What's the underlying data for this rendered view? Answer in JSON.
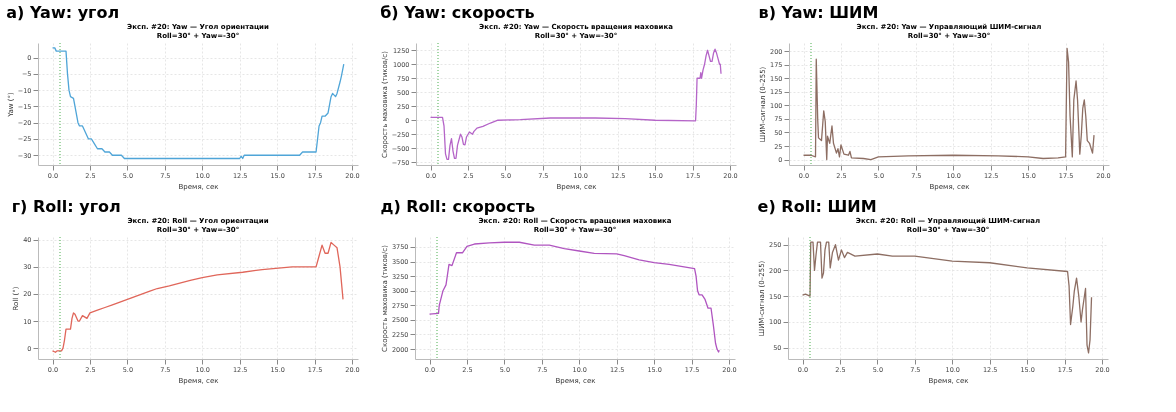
{
  "chart_data": [
    {
      "type": "line",
      "title": "а) Yaw: угол",
      "subtitle": "Эксп. #20: Yaw — Угол ориентации\nRoll=30° + Yaw=-30°",
      "xlabel": "Время, сек",
      "ylabel": "Yaw (°)",
      "grid": true,
      "xlim": [
        -0.97,
        20.4
      ],
      "xticks": [
        {
          "value": 0,
          "label": "0.0"
        },
        {
          "value": 2.5,
          "label": "2.5"
        },
        {
          "value": 5,
          "label": "5.0"
        },
        {
          "value": 7.5,
          "label": "7.5"
        },
        {
          "value": 10,
          "label": "10.0"
        },
        {
          "value": 12.5,
          "label": "12.5"
        },
        {
          "value": 15,
          "label": "15.0"
        },
        {
          "value": 17.5,
          "label": "17.5"
        },
        {
          "value": 20,
          "label": "20.0"
        }
      ],
      "ylim": [
        -33,
        4.5
      ],
      "yticks": [
        -30,
        -25,
        -20,
        -15,
        -10,
        -5,
        0
      ],
      "ref_lines": [
        {
          "axis": "x",
          "value": 0.5,
          "color": "#4caf50",
          "line_style": "dotted"
        }
      ],
      "series": [
        {
          "color": "#4fa5d8",
          "x": [
            0,
            0.15,
            0.25,
            0.9,
            1.0,
            1.1,
            1.2,
            1.4,
            1.5,
            1.7,
            1.8,
            2.0,
            2.2,
            2.4,
            2.6,
            2.8,
            3.0,
            3.3,
            3.5,
            3.8,
            4.0,
            4.6,
            4.8,
            12.5,
            12.6,
            12.7,
            12.8,
            16.5,
            16.7,
            17.6,
            17.8,
            17.9,
            18.0,
            18.2,
            18.4,
            18.6,
            18.7,
            18.9,
            19.0,
            19.2,
            19.3,
            19.45
          ],
          "values": [
            3,
            3,
            2,
            2,
            -5,
            -10,
            -12,
            -12.5,
            -15,
            -20,
            -21,
            -21,
            -23,
            -25,
            -25,
            -26.5,
            -28,
            -28,
            -29,
            -29,
            -30,
            -30,
            -31,
            -31,
            -30.3,
            -31,
            -30,
            -30,
            -29,
            -29,
            -21,
            -20,
            -18,
            -18,
            -17,
            -12,
            -11,
            -12,
            -11,
            -7.5,
            -5.5,
            -2
          ]
        }
      ]
    },
    {
      "type": "line",
      "title": "б) Yaw: скорость",
      "subtitle": "Эксп. #20: Yaw — Скорость вращения маховика\nRoll=30° + Yaw=-30°",
      "xlabel": "Время, сек",
      "ylabel": "Скорость маховика (тиков/с)",
      "grid": true,
      "xlim": [
        -0.97,
        20.4
      ],
      "xticks": [
        {
          "value": 0,
          "label": "0.0"
        },
        {
          "value": 2.5,
          "label": "2.5"
        },
        {
          "value": 5,
          "label": "5.0"
        },
        {
          "value": 7.5,
          "label": "7.5"
        },
        {
          "value": 10,
          "label": "10.0"
        },
        {
          "value": 12.5,
          "label": "12.5"
        },
        {
          "value": 15,
          "label": "15.0"
        },
        {
          "value": 17.5,
          "label": "17.5"
        },
        {
          "value": 20,
          "label": "20.0"
        }
      ],
      "ylim": [
        -800,
        1380
      ],
      "yticks": [
        -750,
        -500,
        -250,
        0,
        250,
        500,
        750,
        1000,
        1250
      ],
      "ref_lines": [
        {
          "axis": "x",
          "value": 0.5,
          "color": "#4caf50",
          "line_style": "dotted"
        }
      ],
      "series": [
        {
          "color": "#b565c8",
          "x": [
            0,
            0.8,
            0.9,
            1.0,
            1.1,
            1.2,
            1.3,
            1.4,
            1.5,
            1.6,
            1.7,
            1.8,
            2.0,
            2.1,
            2.2,
            2.3,
            2.4,
            2.6,
            2.8,
            2.9,
            3.1,
            3.5,
            4.0,
            4.5,
            6.0,
            8.0,
            11.0,
            13.0,
            15.0,
            17.7,
            17.75,
            17.8,
            18.0,
            18.05,
            18.1,
            18.2,
            18.3,
            18.4,
            18.5,
            18.6,
            18.7,
            18.8,
            18.9,
            19.0,
            19.1,
            19.2,
            19.3,
            19.35,
            19.4
          ],
          "values": [
            50,
            50,
            -100,
            -600,
            -700,
            -700,
            -450,
            -330,
            -550,
            -680,
            -680,
            -450,
            -250,
            -300,
            -430,
            -440,
            -300,
            -210,
            -250,
            -200,
            -140,
            -110,
            -50,
            0,
            10,
            40,
            40,
            30,
            0,
            -10,
            280,
            750,
            750,
            850,
            750,
            900,
            1000,
            1150,
            1250,
            1150,
            1050,
            1050,
            1200,
            1270,
            1200,
            1100,
            1000,
            1000,
            830
          ]
        }
      ]
    },
    {
      "type": "line",
      "title": "в) Yaw: ШИМ",
      "subtitle": "Эксп. #20: Yaw — Управляющий ШИМ-сигнал\nRoll=30° + Yaw=-30°",
      "xlabel": "Время, сек",
      "ylabel": "ШИМ-сигнал (0–255)",
      "grid": true,
      "xlim": [
        -0.97,
        20.4
      ],
      "xticks": [
        {
          "value": 0,
          "label": "0.0"
        },
        {
          "value": 2.5,
          "label": "2.5"
        },
        {
          "value": 5,
          "label": "5.0"
        },
        {
          "value": 7.5,
          "label": "7.5"
        },
        {
          "value": 10,
          "label": "10.0"
        },
        {
          "value": 12.5,
          "label": "12.5"
        },
        {
          "value": 15,
          "label": "15.0"
        },
        {
          "value": 17.5,
          "label": "17.5"
        },
        {
          "value": 20,
          "label": "20.0"
        }
      ],
      "ylim": [
        -10,
        215
      ],
      "yticks": [
        0,
        25,
        50,
        75,
        100,
        125,
        150,
        175,
        200
      ],
      "ref_lines": [
        {
          "axis": "x",
          "value": 0.5,
          "color": "#4caf50",
          "line_style": "dotted"
        }
      ],
      "series": [
        {
          "color": "#8d6e63",
          "x": [
            0,
            0.5,
            0.8,
            0.85,
            0.95,
            1.0,
            1.2,
            1.35,
            1.45,
            1.55,
            1.6,
            1.75,
            1.9,
            2.0,
            2.2,
            2.3,
            2.4,
            2.5,
            2.7,
            3.0,
            3.1,
            3.2,
            4.0,
            4.5,
            5.0,
            7.0,
            10.0,
            13.0,
            15.0,
            16.0,
            17.0,
            17.5,
            17.6,
            17.7,
            17.8,
            17.95,
            18.05,
            18.2,
            18.3,
            18.45,
            18.55,
            18.65,
            18.75,
            18.85,
            18.95,
            19.1,
            19.3,
            19.4
          ],
          "values": [
            8,
            8,
            5,
            185,
            72,
            40,
            35,
            90,
            70,
            0,
            43,
            30,
            62,
            30,
            12,
            20,
            5,
            27,
            10,
            8,
            15,
            3,
            2,
            0,
            5,
            7,
            8,
            7,
            5,
            2,
            3,
            5,
            205,
            180,
            80,
            5,
            110,
            145,
            110,
            10,
            45,
            95,
            110,
            80,
            35,
            30,
            12,
            45
          ]
        }
      ]
    },
    {
      "type": "line",
      "title": "г) Roll: угол",
      "subtitle": "Эксп. #20: Roll — Угол ориентации\nRoll=30° + Yaw=-30°",
      "xlabel": "Время, сек",
      "ylabel": "Roll (°)",
      "grid": true,
      "xlim": [
        -0.97,
        20.4
      ],
      "xticks": [
        {
          "value": 0,
          "label": "0.0"
        },
        {
          "value": 2.5,
          "label": "2.5"
        },
        {
          "value": 5,
          "label": "5.0"
        },
        {
          "value": 7.5,
          "label": "7.5"
        },
        {
          "value": 10,
          "label": "10.0"
        },
        {
          "value": 12.5,
          "label": "12.5"
        },
        {
          "value": 15,
          "label": "15.0"
        },
        {
          "value": 17.5,
          "label": "17.5"
        },
        {
          "value": 20,
          "label": "20.0"
        }
      ],
      "ylim": [
        -4,
        41
      ],
      "yticks": [
        0,
        10,
        20,
        30,
        40
      ],
      "ref_lines": [
        {
          "axis": "x",
          "value": 0.5,
          "color": "#4caf50",
          "line_style": "dotted"
        }
      ],
      "series": [
        {
          "color": "#e0665a",
          "x": [
            0,
            0.2,
            0.3,
            0.6,
            0.7,
            0.8,
            0.9,
            1.2,
            1.3,
            1.4,
            1.5,
            1.7,
            1.8,
            2.0,
            2.3,
            2.5,
            3.0,
            3.5,
            4.0,
            4.5,
            5.0,
            5.5,
            6.0,
            6.5,
            7.0,
            7.8,
            8.5,
            9.2,
            10.0,
            11.0,
            12.7,
            14.0,
            16.0,
            17.6,
            17.8,
            18.0,
            18.2,
            18.4,
            18.6,
            18.8,
            19.0,
            19.2,
            19.4
          ],
          "values": [
            -1,
            -1.5,
            -1,
            -1,
            0,
            3,
            7,
            7,
            11,
            13,
            12.5,
            10,
            10,
            12,
            11,
            13,
            14,
            15,
            16,
            17,
            18,
            19,
            20,
            21,
            22,
            23,
            24,
            25,
            26,
            27,
            28,
            29,
            30,
            30,
            34,
            38,
            35,
            35,
            39,
            38,
            37,
            30,
            18
          ]
        }
      ]
    },
    {
      "type": "line",
      "title": "д) Roll: скорость",
      "subtitle": "Эксп. #20: Roll — Скорость вращения маховика\nRoll=30° + Yaw=-30°",
      "xlabel": "Время, сек",
      "ylabel": "Скорость маховика (тиков/с)",
      "grid": true,
      "xlim": [
        -0.97,
        20.4
      ],
      "xticks": [
        {
          "value": 0,
          "label": "0.0"
        },
        {
          "value": 2.5,
          "label": "2.5"
        },
        {
          "value": 5,
          "label": "5.0"
        },
        {
          "value": 7.5,
          "label": "7.5"
        },
        {
          "value": 10,
          "label": "10.0"
        },
        {
          "value": 12.5,
          "label": "12.5"
        },
        {
          "value": 15,
          "label": "15.0"
        },
        {
          "value": 17.5,
          "label": "17.5"
        },
        {
          "value": 20,
          "label": "20.0"
        }
      ],
      "ylim": [
        1830,
        3920
      ],
      "yticks": [
        2000,
        2250,
        2500,
        2750,
        3000,
        3250,
        3500,
        3750
      ],
      "ref_lines": [
        {
          "axis": "x",
          "value": 0.5,
          "color": "#4caf50",
          "line_style": "dotted"
        }
      ],
      "series": [
        {
          "color": "#b055c0",
          "x": [
            0,
            0.6,
            0.65,
            0.9,
            1.1,
            1.3,
            1.5,
            1.8,
            2.2,
            2.5,
            3.0,
            4.0,
            5.0,
            6.0,
            7.0,
            8.0,
            9.0,
            10.0,
            11.0,
            12.5,
            13.0,
            14.0,
            15.0,
            16.0,
            17.0,
            17.7,
            17.8,
            17.9,
            18.0,
            18.2,
            18.4,
            18.6,
            18.8,
            18.95,
            19.1,
            19.2,
            19.3,
            19.35
          ],
          "values": [
            2600,
            2610,
            2750,
            3000,
            3100,
            3450,
            3430,
            3650,
            3650,
            3760,
            3800,
            3820,
            3830,
            3830,
            3780,
            3780,
            3720,
            3680,
            3640,
            3630,
            3600,
            3530,
            3480,
            3450,
            3410,
            3380,
            3250,
            3000,
            2930,
            2930,
            2850,
            2700,
            2700,
            2420,
            2100,
            2000,
            1950,
            1980
          ]
        }
      ]
    },
    {
      "type": "line",
      "title": "е) Roll: ШИМ",
      "subtitle": "Эксп. #20: Roll — Управляющий ШИМ-сигнал\nRoll=30° + Yaw=-30°",
      "xlabel": "Время, сек",
      "ylabel": "ШИМ-сигнал (0–255)",
      "grid": true,
      "xlim": [
        -0.97,
        20.4
      ],
      "xticks": [
        {
          "value": 0,
          "label": "0.0"
        },
        {
          "value": 2.5,
          "label": "2.5"
        },
        {
          "value": 5,
          "label": "5.0"
        },
        {
          "value": 7.5,
          "label": "7.5"
        },
        {
          "value": 10,
          "label": "10.0"
        },
        {
          "value": 12.5,
          "label": "12.5"
        },
        {
          "value": 15,
          "label": "15.0"
        },
        {
          "value": 17.5,
          "label": "17.5"
        },
        {
          "value": 20,
          "label": "20.0"
        }
      ],
      "ylim": [
        28,
        265
      ],
      "yticks": [
        50,
        100,
        150,
        200,
        250
      ],
      "ref_lines": [
        {
          "axis": "x",
          "value": 0.5,
          "color": "#4caf50",
          "line_style": "dotted"
        }
      ],
      "series": [
        {
          "color": "#8d6e63",
          "x": [
            0,
            0.2,
            0.5,
            0.55,
            0.7,
            0.8,
            0.9,
            1.0,
            1.2,
            1.3,
            1.4,
            1.5,
            1.6,
            1.75,
            1.85,
            2.0,
            2.2,
            2.4,
            2.6,
            2.8,
            3.0,
            3.5,
            5.0,
            6.0,
            7.5,
            10.0,
            12.5,
            15.0,
            17.7,
            17.8,
            17.9,
            18.05,
            18.15,
            18.3,
            18.45,
            18.6,
            18.7,
            18.9,
            19.0,
            19.1,
            19.2,
            19.3
          ],
          "values": [
            152,
            154,
            150,
            255,
            255,
            200,
            230,
            255,
            255,
            185,
            195,
            240,
            255,
            255,
            205,
            235,
            250,
            220,
            240,
            225,
            235,
            228,
            232,
            228,
            228,
            218,
            215,
            205,
            198,
            170,
            95,
            130,
            160,
            185,
            150,
            100,
            125,
            165,
            55,
            40,
            65,
            148
          ]
        }
      ]
    }
  ]
}
